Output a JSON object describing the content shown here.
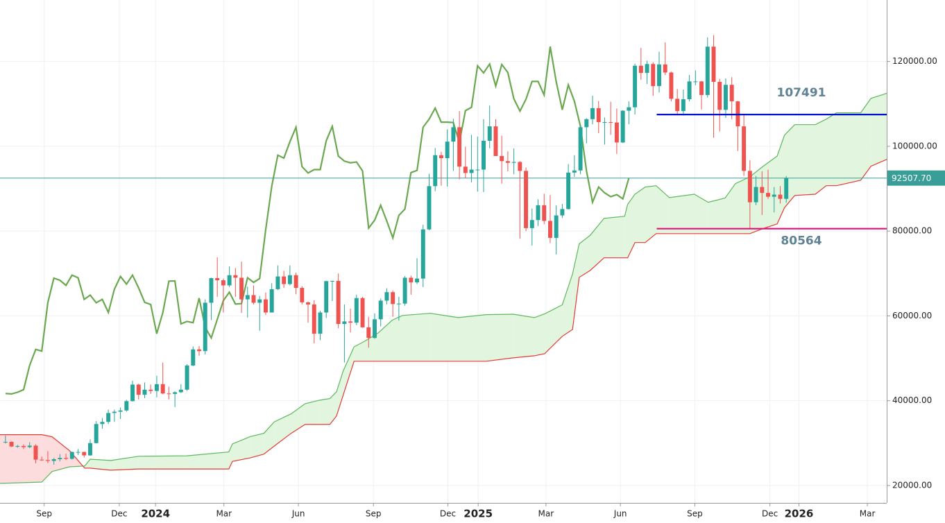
{
  "chart_data": {
    "type": "candlestick",
    "ohlc": [
      [
        30300,
        31800,
        29900,
        30300
      ],
      [
        30300,
        30400,
        29100,
        29200
      ],
      [
        29200,
        29600,
        28900,
        29300
      ],
      [
        29300,
        29700,
        28600,
        29050
      ],
      [
        29050,
        30200,
        28800,
        29400
      ],
      [
        29400,
        29700,
        25200,
        26100
      ],
      [
        26100,
        26800,
        25800,
        26000
      ],
      [
        26000,
        28100,
        25300,
        25800
      ],
      [
        25800,
        26500,
        24900,
        26200
      ],
      [
        26200,
        27400,
        25700,
        26500
      ],
      [
        26500,
        27500,
        26000,
        26300
      ],
      [
        26300,
        28000,
        26100,
        27900
      ],
      [
        27900,
        28600,
        27200,
        27900
      ],
      [
        27900,
        28000,
        26600,
        27100
      ],
      [
        27100,
        30900,
        27000,
        30000
      ],
      [
        30000,
        35200,
        29900,
        34500
      ],
      [
        34500,
        35900,
        33400,
        35000
      ],
      [
        35000,
        37900,
        34500,
        37100
      ],
      [
        37100,
        37900,
        35000,
        37400
      ],
      [
        37400,
        38400,
        35700,
        37700
      ],
      [
        37700,
        40200,
        37400,
        39900
      ],
      [
        39900,
        44700,
        39800,
        43800
      ],
      [
        43800,
        44000,
        40300,
        41400
      ],
      [
        41400,
        44300,
        40600,
        42600
      ],
      [
        42600,
        43800,
        41600,
        42300
      ],
      [
        42300,
        45900,
        40800,
        43900
      ],
      [
        43900,
        49000,
        41500,
        41700
      ],
      [
        41700,
        43300,
        40300,
        41600
      ],
      [
        41600,
        42200,
        38500,
        42000
      ],
      [
        42000,
        43900,
        41800,
        42600
      ],
      [
        42600,
        48600,
        42300,
        48300
      ],
      [
        48300,
        52800,
        48100,
        52100
      ],
      [
        52100,
        52900,
        50600,
        51700
      ],
      [
        51700,
        63900,
        50900,
        63100
      ],
      [
        63100,
        69000,
        59000,
        68900
      ],
      [
        68900,
        73800,
        64500,
        68400
      ],
      [
        68400,
        68800,
        60800,
        67200
      ],
      [
        67200,
        71700,
        66800,
        69600
      ],
      [
        69600,
        71300,
        64500,
        69000
      ],
      [
        69000,
        72800,
        60700,
        63900
      ],
      [
        63900,
        66900,
        59600,
        64900
      ],
      [
        64900,
        67200,
        62700,
        63100
      ],
      [
        63100,
        64700,
        56500,
        63900
      ],
      [
        63900,
        65500,
        60200,
        60800
      ],
      [
        60800,
        67700,
        60800,
        66300
      ],
      [
        66300,
        71900,
        66100,
        69300
      ],
      [
        69300,
        70600,
        66600,
        67500
      ],
      [
        67500,
        71900,
        67200,
        69600
      ],
      [
        69600,
        70200,
        65100,
        66600
      ],
      [
        66600,
        67000,
        62700,
        63200
      ],
      [
        63200,
        63400,
        58400,
        62700
      ],
      [
        62700,
        63700,
        53500,
        55800
      ],
      [
        55800,
        61200,
        54300,
        60800
      ],
      [
        60800,
        68300,
        59500,
        68200
      ],
      [
        68200,
        68300,
        63500,
        68250
      ],
      [
        68250,
        70000,
        57100,
        58100
      ],
      [
        58100,
        62700,
        49000,
        58700
      ],
      [
        58700,
        61700,
        56100,
        58400
      ],
      [
        58400,
        65000,
        57800,
        64200
      ],
      [
        64200,
        64500,
        57200,
        57300
      ],
      [
        57300,
        59800,
        52500,
        54800
      ],
      [
        54800,
        60600,
        54600,
        59200
      ],
      [
        59200,
        64100,
        57500,
        63600
      ],
      [
        63600,
        66500,
        62700,
        65600
      ],
      [
        65600,
        66000,
        59800,
        62800
      ],
      [
        62800,
        64500,
        58900,
        62900
      ],
      [
        62900,
        69400,
        62400,
        69000
      ],
      [
        69000,
        69500,
        65000,
        67900
      ],
      [
        67900,
        73600,
        67500,
        68800
      ],
      [
        68800,
        81500,
        66800,
        80400
      ],
      [
        80400,
        93500,
        80200,
        90600
      ],
      [
        90600,
        99600,
        89400,
        97900
      ],
      [
        97900,
        98700,
        90700,
        97200
      ],
      [
        97200,
        104000,
        90500,
        101100
      ],
      [
        101100,
        106500,
        94200,
        104500
      ],
      [
        104500,
        108300,
        92200,
        95200
      ],
      [
        95200,
        99900,
        92500,
        93700
      ],
      [
        93700,
        102700,
        91500,
        94500
      ],
      [
        94500,
        102300,
        89300,
        94500
      ],
      [
        94500,
        106400,
        89200,
        101300
      ],
      [
        101300,
        109600,
        99500,
        104700
      ],
      [
        104700,
        106400,
        97700,
        97700
      ],
      [
        97700,
        102500,
        91200,
        96500
      ],
      [
        96500,
        98800,
        94100,
        96100
      ],
      [
        96100,
        99500,
        93400,
        96300
      ],
      [
        96300,
        96500,
        78200,
        94200
      ],
      [
        94200,
        95000,
        80000,
        80700
      ],
      [
        80700,
        85300,
        76600,
        82600
      ],
      [
        82600,
        87500,
        81200,
        86100
      ],
      [
        86100,
        88800,
        81600,
        82400
      ],
      [
        82400,
        88500,
        77200,
        78400
      ],
      [
        78400,
        86100,
        74500,
        83700
      ],
      [
        83700,
        86400,
        83100,
        85200
      ],
      [
        85200,
        95800,
        85100,
        93800
      ],
      [
        93800,
        97900,
        92800,
        94300
      ],
      [
        94300,
        105000,
        93400,
        104500
      ],
      [
        104500,
        106600,
        100700,
        106400
      ],
      [
        106400,
        111900,
        105200,
        109000
      ],
      [
        109000,
        110700,
        103100,
        105700
      ],
      [
        105700,
        106800,
        100400,
        105700
      ],
      [
        105700,
        110500,
        102700,
        105600
      ],
      [
        105600,
        108900,
        98200,
        100900
      ],
      [
        100900,
        108500,
        100800,
        108400
      ],
      [
        108400,
        110600,
        105200,
        109200
      ],
      [
        109200,
        119500,
        107500,
        119000
      ],
      [
        119000,
        123200,
        115700,
        117300
      ],
      [
        117300,
        120200,
        114700,
        119400
      ],
      [
        119400,
        119800,
        111900,
        114200
      ],
      [
        114200,
        122300,
        112700,
        119300
      ],
      [
        119300,
        124500,
        116800,
        117400
      ],
      [
        117400,
        117600,
        110600,
        111200
      ],
      [
        111200,
        113500,
        107300,
        108300
      ],
      [
        108300,
        113400,
        107300,
        111100
      ],
      [
        111100,
        116800,
        110600,
        115300
      ],
      [
        115300,
        117900,
        114400,
        115300
      ],
      [
        115300,
        115400,
        108700,
        112100
      ],
      [
        112100,
        125700,
        111500,
        123500
      ],
      [
        123500,
        126200,
        102000,
        115200
      ],
      [
        115200,
        115900,
        103500,
        108600
      ],
      [
        108600,
        116000,
        106700,
        114500
      ],
      [
        114500,
        116300,
        106400,
        110600
      ],
      [
        110600,
        110700,
        98900,
        104700
      ],
      [
        104700,
        107400,
        93000,
        94200
      ],
      [
        94200,
        96700,
        80600,
        86800
      ],
      [
        86800,
        93000,
        86100,
        90400
      ],
      [
        90400,
        94100,
        83800,
        89000
      ],
      [
        89000,
        94500,
        87600,
        88100
      ],
      [
        88100,
        90400,
        84400,
        88600
      ],
      [
        88600,
        90600,
        86500,
        87600
      ],
      [
        87600,
        93000,
        86700,
        92500
      ]
    ],
    "up_color": "#26a69a",
    "down_color": "#ef5350",
    "xlim": [
      -0.9,
      145.6
    ],
    "xticks": [
      {
        "value": 6.4,
        "label": "Sep"
      },
      {
        "value": 18.8,
        "label": "Dec"
      },
      {
        "value": 24.8,
        "label": "2024"
      },
      {
        "value": 36.1,
        "label": "Mar"
      },
      {
        "value": 48.4,
        "label": "Jun"
      },
      {
        "value": 60.8,
        "label": "Sep"
      },
      {
        "value": 73.1,
        "label": "Dec"
      },
      {
        "value": 78.1,
        "label": "2025"
      },
      {
        "value": 89.3,
        "label": "Mar"
      },
      {
        "value": 101.6,
        "label": "Jun"
      },
      {
        "value": 113.9,
        "label": "Sep"
      },
      {
        "value": 126.3,
        "label": "Dec"
      },
      {
        "value": 131.1,
        "label": "2026"
      },
      {
        "value": 142.4,
        "label": "Mar"
      }
    ],
    "ylim": [
      15900,
      134500
    ],
    "yticks": [
      {
        "value": 20000,
        "label": "20000.00"
      },
      {
        "value": 40000,
        "label": "40000.00"
      },
      {
        "value": 60000,
        "label": "60000.00"
      },
      {
        "value": 80000,
        "label": "80000.00"
      },
      {
        "value": 100000,
        "label": "100000.00"
      },
      {
        "value": 120000,
        "label": "120000.00"
      }
    ],
    "grid": true,
    "cloud": {
      "x": [
        -0.9,
        6.0,
        7.7,
        10.6,
        13.1,
        14.0,
        17.4,
        22.0,
        30.0,
        36.9,
        37.5,
        40.4,
        42.7,
        44.4,
        47.2,
        49.5,
        51.8,
        53.6,
        54.7,
        55.8,
        57.6,
        59.3,
        61.6,
        63.9,
        65.6,
        70.2,
        74.8,
        79.4,
        83.9,
        87.4,
        89.1,
        92.0,
        93.7,
        94.8,
        96.6,
        98.9,
        102.3,
        102.8,
        104.0,
        105.7,
        107.5,
        109.7,
        113.8,
        116.1,
        118.9,
        120.6,
        123.0,
        125.2,
        127.5,
        128.7,
        130.4,
        133.8,
        135.6,
        137.3,
        141.3,
        143.0,
        145.6
      ],
      "span_a": [
        20500,
        20800,
        23300,
        24400,
        24600,
        26200,
        25900,
        26900,
        27000,
        27900,
        29800,
        31500,
        32300,
        35000,
        36900,
        39300,
        40100,
        40500,
        42100,
        47000,
        52700,
        54000,
        56000,
        59000,
        60100,
        60600,
        59600,
        60300,
        60400,
        59600,
        60500,
        62600,
        69900,
        77000,
        79000,
        83000,
        83500,
        86300,
        88700,
        90400,
        90700,
        87900,
        88700,
        86800,
        87800,
        91200,
        92800,
        95300,
        97700,
        102600,
        105100,
        105100,
        106400,
        107900,
        107900,
        111300,
        112500
      ],
      "span_b": [
        32000,
        32000,
        31500,
        28200,
        24100,
        24100,
        23600,
        23900,
        23900,
        23900,
        25700,
        26500,
        27400,
        29300,
        32300,
        34400,
        34400,
        34400,
        36400,
        41300,
        49300,
        49300,
        49300,
        49300,
        49300,
        49300,
        49300,
        49300,
        50100,
        50600,
        51100,
        55200,
        56800,
        69100,
        70700,
        73700,
        73700,
        73700,
        77300,
        77300,
        79400,
        79400,
        79400,
        79400,
        79400,
        79400,
        79400,
        80600,
        81700,
        85500,
        88400,
        88700,
        90700,
        90700,
        92000,
        95300,
        96900
      ],
      "span_a_color": "#5cb85c",
      "span_b_color": "#e53935",
      "bull_fill": "#e2f5de",
      "bear_fill": "#fcdcdc"
    },
    "lagging_span": {
      "shift": 26,
      "color": "#6aa84f"
    },
    "last_price": {
      "value": 92507.7,
      "label": "92507.70",
      "color": "#3a9e98"
    },
    "levels": [
      {
        "value": 107491,
        "color": "#0010d0",
        "start": 107.6
      },
      {
        "value": 80564,
        "color": "#e0107a",
        "start": 107.6
      }
    ],
    "level_label_color": "#5f8294"
  }
}
